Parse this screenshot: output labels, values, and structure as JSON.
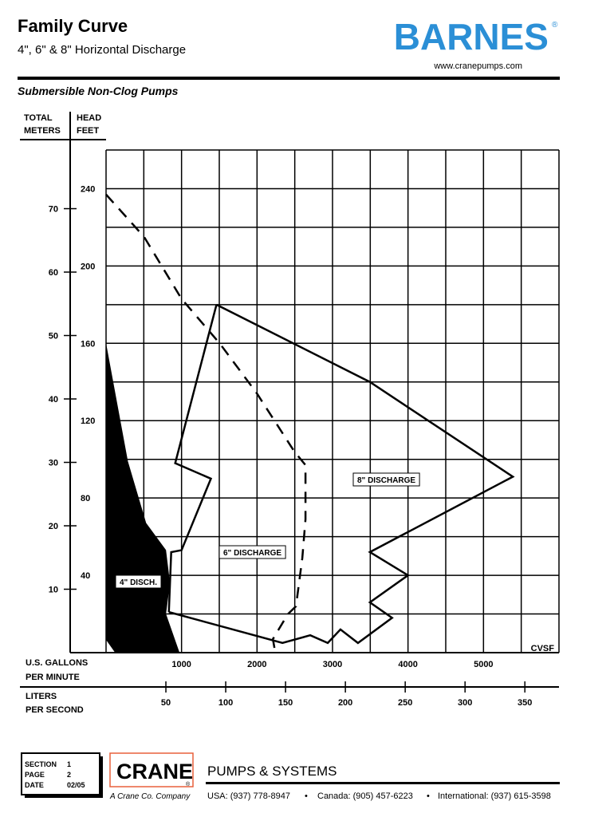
{
  "header": {
    "title": "Family Curve",
    "subtitle": "4\", 6\" & 8\" Horizontal Discharge",
    "brand": "BARNES",
    "brand_mark": "®",
    "url": "www.cranepumps.com",
    "section_title": "Submersible Non-Clog Pumps"
  },
  "chart_data": {
    "type": "line",
    "y_label": [
      "HEAD",
      "FEET"
    ],
    "y2_label": [
      "TOTAL",
      "METERS"
    ],
    "x_label": [
      "U.S. GALLONS",
      "PER MINUTE"
    ],
    "x2_label": [
      "LITERS",
      "PER SECOND"
    ],
    "annotation": "CVSF",
    "xlim": [
      0,
      6000
    ],
    "xticks": [
      1000,
      2000,
      3000,
      4000,
      5000
    ],
    "xgrid": [
      0,
      500,
      1000,
      1500,
      2000,
      2500,
      3000,
      3500,
      4000,
      4500,
      5000,
      5500,
      6000
    ],
    "ylim": [
      0,
      260
    ],
    "yticks": [
      40,
      80,
      120,
      160,
      200,
      240
    ],
    "ygrid": [
      0,
      20,
      40,
      60,
      80,
      100,
      120,
      140,
      160,
      180,
      200,
      220,
      240,
      260
    ],
    "y2lim": [
      0,
      79.25
    ],
    "y2ticks": [
      10,
      20,
      30,
      40,
      50,
      60,
      70
    ],
    "x2lim": [
      0,
      378.5
    ],
    "x2ticks": [
      50,
      100,
      150,
      200,
      250,
      300,
      350
    ],
    "grid": true,
    "series": [
      {
        "name": "4\" DISCH.",
        "color": "#000000",
        "fill": true,
        "x": [
          0,
          284,
          526,
          789,
          842,
          789,
          968,
          126,
          0
        ],
        "values": [
          159,
          99,
          67,
          53,
          36,
          20,
          0,
          0,
          7
        ]
      },
      {
        "name": "6\" DISCHARGE",
        "color": "#000000",
        "x": [
          1463,
          916,
          1389,
          1000,
          863,
          832
        ],
        "values": [
          180,
          98,
          90,
          53,
          52,
          21
        ]
      },
      {
        "name": "8\" DISCHARGE",
        "color": "#000000",
        "x": [
          1463,
          3495,
          5389,
          3495,
          4000,
          3495,
          3789,
          3337,
          3105,
          2937,
          2705,
          2337,
          832
        ],
        "values": [
          180,
          140,
          91,
          52,
          40,
          26,
          18,
          5,
          12,
          5,
          9,
          5,
          21
        ]
      },
      {
        "color": "#000000",
        "dashed": true,
        "x": [
          0,
          505,
          1000,
          1505,
          2000,
          2495,
          2642,
          2642,
          2600,
          2516,
          2410,
          2210,
          2242
        ],
        "values": [
          237,
          215,
          183,
          160,
          134,
          104,
          97,
          69,
          49,
          24,
          20,
          7,
          0
        ]
      }
    ]
  },
  "footer": {
    "section": [
      {
        "label": "SECTION",
        "value": "1"
      },
      {
        "label": "PAGE",
        "value": "2"
      },
      {
        "label": "DATE",
        "value": "02/05"
      }
    ],
    "company": "CRANE",
    "company_mark": "®",
    "company_note": "A Crane Co. Company",
    "division": "PUMPS & SYSTEMS",
    "contacts": [
      "USA: (937) 778-8947",
      "Canada: (905) 457-6223",
      "International: (937) 615-3598"
    ]
  }
}
